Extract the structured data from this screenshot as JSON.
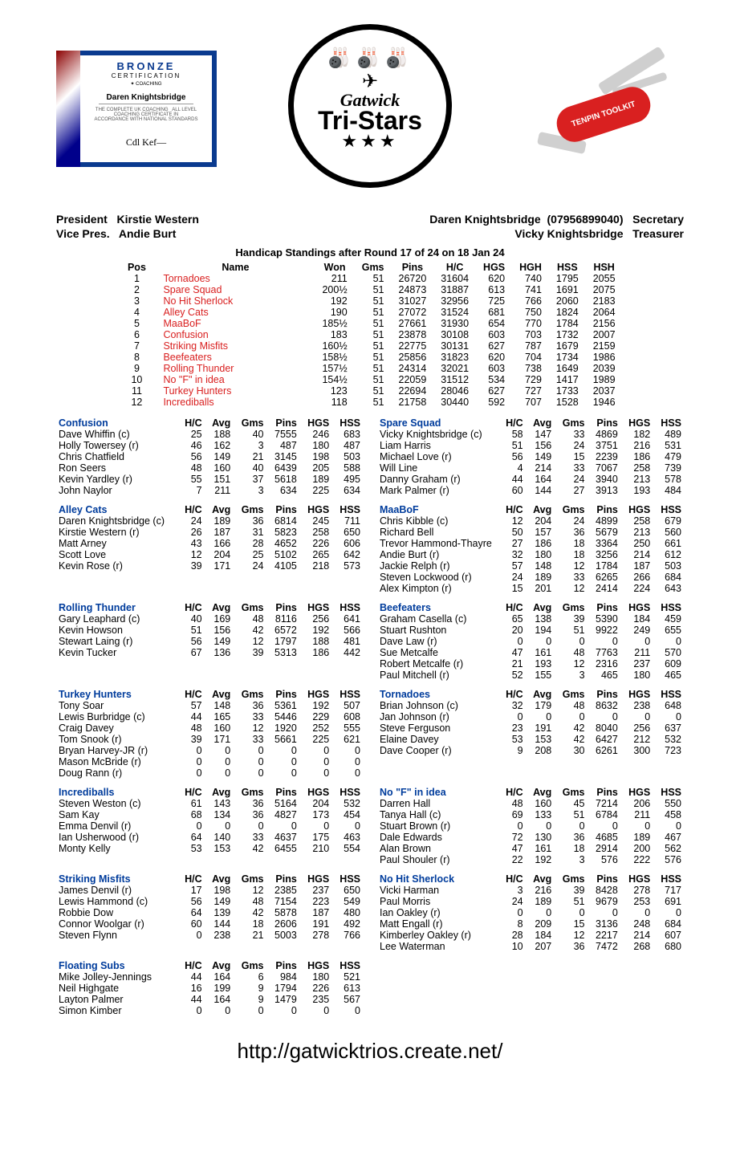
{
  "header": {
    "certificate": {
      "title": "BRONZE",
      "subtitle": "CERTIFICATION",
      "coaching": "COACHING",
      "name": "Daren Knightsbridge"
    },
    "logo": {
      "gatwick": "Gatwick",
      "tristars": "Tri-Stars"
    },
    "knife_label": "TENPIN TOOLKIT"
  },
  "officers": {
    "president_label": "President",
    "president": "Kirstie Western",
    "vp_label": "Vice Pres.",
    "vp": "Andie Burt",
    "secretary_name": "Daren Knightsbridge",
    "secretary_phone": "(07956899040)",
    "secretary_label": "Secretary",
    "treasurer_name": "Vicky Knightsbridge",
    "treasurer_label": "Treasurer"
  },
  "standings_title": "Handicap Standings after Round 17 of 24 on 18 Jan 24",
  "standings_headers": [
    "Pos",
    "Name",
    "Won",
    "Gms",
    "Pins",
    "H/C",
    "HGS",
    "HGH",
    "HSS",
    "HSH"
  ],
  "standings": [
    [
      "1",
      "Tornadoes",
      "211",
      "51",
      "26720",
      "31604",
      "620",
      "740",
      "1795",
      "2055"
    ],
    [
      "2",
      "Spare Squad",
      "200½",
      "51",
      "24873",
      "31887",
      "613",
      "741",
      "1691",
      "2075"
    ],
    [
      "3",
      "No Hit Sherlock",
      "192",
      "51",
      "31027",
      "32956",
      "725",
      "766",
      "2060",
      "2183"
    ],
    [
      "4",
      "Alley Cats",
      "190",
      "51",
      "27072",
      "31524",
      "681",
      "750",
      "1824",
      "2064"
    ],
    [
      "5",
      "MaaBoF",
      "185½",
      "51",
      "27661",
      "31930",
      "654",
      "770",
      "1784",
      "2156"
    ],
    [
      "6",
      "Confusion",
      "183",
      "51",
      "23878",
      "30108",
      "603",
      "703",
      "1732",
      "2007"
    ],
    [
      "7",
      "Striking Misfits",
      "160½",
      "51",
      "22775",
      "30131",
      "627",
      "787",
      "1679",
      "2159"
    ],
    [
      "8",
      "Beefeaters",
      "158½",
      "51",
      "25856",
      "31823",
      "620",
      "704",
      "1734",
      "1986"
    ],
    [
      "9",
      "Rolling Thunder",
      "157½",
      "51",
      "24314",
      "32021",
      "603",
      "738",
      "1649",
      "2039"
    ],
    [
      "10",
      "No \"F\" in idea",
      "154½",
      "51",
      "22059",
      "31512",
      "534",
      "729",
      "1417",
      "1989"
    ],
    [
      "11",
      "Turkey Hunters",
      "123",
      "51",
      "22694",
      "28046",
      "627",
      "727",
      "1733",
      "2037"
    ],
    [
      "12",
      "Incrediballs",
      "118",
      "51",
      "21758",
      "30440",
      "592",
      "707",
      "1528",
      "1946"
    ]
  ],
  "team_headers": [
    "H/C",
    "Avg",
    "Gms",
    "Pins",
    "HGS",
    "HSS"
  ],
  "teams_left": [
    {
      "name": "Confusion",
      "rows": [
        [
          "Dave Whiffin (c)",
          "25",
          "188",
          "40",
          "7555",
          "246",
          "683"
        ],
        [
          "Holly Towersey (r)",
          "46",
          "162",
          "3",
          "487",
          "180",
          "487"
        ],
        [
          "Chris Chatfield",
          "56",
          "149",
          "21",
          "3145",
          "198",
          "503"
        ],
        [
          "Ron Seers",
          "48",
          "160",
          "40",
          "6439",
          "205",
          "588"
        ],
        [
          "Kevin Yardley (r)",
          "55",
          "151",
          "37",
          "5618",
          "189",
          "495"
        ],
        [
          "John Naylor",
          "7",
          "211",
          "3",
          "634",
          "225",
          "634"
        ]
      ]
    },
    {
      "name": "Alley Cats",
      "rows": [
        [
          "Daren Knightsbridge (c)",
          "24",
          "189",
          "36",
          "6814",
          "245",
          "711"
        ],
        [
          "Kirstie Western (r)",
          "26",
          "187",
          "31",
          "5823",
          "258",
          "650"
        ],
        [
          "Matt Arney",
          "43",
          "166",
          "28",
          "4652",
          "226",
          "606"
        ],
        [
          "Scott Love",
          "12",
          "204",
          "25",
          "5102",
          "265",
          "642"
        ],
        [
          "Kevin Rose (r)",
          "39",
          "171",
          "24",
          "4105",
          "218",
          "573"
        ]
      ]
    },
    {
      "name": "Rolling Thunder",
      "rows": [
        [
          "Gary Leaphard (c)",
          "40",
          "169",
          "48",
          "8116",
          "256",
          "641"
        ],
        [
          "Kevin Howson",
          "51",
          "156",
          "42",
          "6572",
          "192",
          "566"
        ],
        [
          "Stewart Laing (r)",
          "56",
          "149",
          "12",
          "1797",
          "188",
          "481"
        ],
        [
          "Kevin Tucker",
          "67",
          "136",
          "39",
          "5313",
          "186",
          "442"
        ]
      ]
    },
    {
      "name": "Turkey Hunters",
      "rows": [
        [
          "Tony Soar",
          "57",
          "148",
          "36",
          "5361",
          "192",
          "507"
        ],
        [
          "Lewis Burbridge (c)",
          "44",
          "165",
          "33",
          "5446",
          "229",
          "608"
        ],
        [
          "Craig Davey",
          "48",
          "160",
          "12",
          "1920",
          "252",
          "555"
        ],
        [
          "Tom Snook (r)",
          "39",
          "171",
          "33",
          "5661",
          "225",
          "621"
        ],
        [
          "Bryan  Harvey-JR (r)",
          "0",
          "0",
          "0",
          "0",
          "0",
          "0"
        ],
        [
          "Mason McBride (r)",
          "0",
          "0",
          "0",
          "0",
          "0",
          "0"
        ],
        [
          "Doug Rann (r)",
          "0",
          "0",
          "0",
          "0",
          "0",
          "0"
        ]
      ]
    },
    {
      "name": "Incrediballs",
      "rows": [
        [
          "Steven Weston (c)",
          "61",
          "143",
          "36",
          "5164",
          "204",
          "532"
        ],
        [
          "Sam Kay",
          "68",
          "134",
          "36",
          "4827",
          "173",
          "454"
        ],
        [
          "Emma Denvil (r)",
          "0",
          "0",
          "0",
          "0",
          "0",
          "0"
        ],
        [
          "Ian Usherwood (r)",
          "64",
          "140",
          "33",
          "4637",
          "175",
          "463"
        ],
        [
          "Monty  Kelly",
          "53",
          "153",
          "42",
          "6455",
          "210",
          "554"
        ]
      ]
    },
    {
      "name": "Striking Misfits",
      "rows": [
        [
          "James Denvil (r)",
          "17",
          "198",
          "12",
          "2385",
          "237",
          "650"
        ],
        [
          "Lewis Hammond (c)",
          "56",
          "149",
          "48",
          "7154",
          "223",
          "549"
        ],
        [
          "Robbie Dow",
          "64",
          "139",
          "42",
          "5878",
          "187",
          "480"
        ],
        [
          "Connor Woolgar (r)",
          "60",
          "144",
          "18",
          "2606",
          "191",
          "492"
        ],
        [
          "Steven Flynn",
          "0",
          "238",
          "21",
          "5003",
          "278",
          "766"
        ]
      ]
    },
    {
      "name": "Floating Subs",
      "rows": [
        [
          "Mike Jolley-Jennings",
          "44",
          "164",
          "6",
          "984",
          "180",
          "521"
        ],
        [
          "Neil Highgate",
          "16",
          "199",
          "9",
          "1794",
          "226",
          "613"
        ],
        [
          "Layton Palmer",
          "44",
          "164",
          "9",
          "1479",
          "235",
          "567"
        ],
        [
          "Simon Kimber",
          "0",
          "0",
          "0",
          "0",
          "0",
          "0"
        ]
      ]
    }
  ],
  "teams_right": [
    {
      "name": "Spare Squad",
      "rows": [
        [
          "Vicky Knightsbridge (c)",
          "58",
          "147",
          "33",
          "4869",
          "182",
          "489"
        ],
        [
          "Liam Harris",
          "51",
          "156",
          "24",
          "3751",
          "216",
          "531"
        ],
        [
          "Michael Love (r)",
          "56",
          "149",
          "15",
          "2239",
          "186",
          "479"
        ],
        [
          "Will Line",
          "4",
          "214",
          "33",
          "7067",
          "258",
          "739"
        ],
        [
          "Danny Graham (r)",
          "44",
          "164",
          "24",
          "3940",
          "213",
          "578"
        ],
        [
          "Mark  Palmer (r)",
          "60",
          "144",
          "27",
          "3913",
          "193",
          "484"
        ]
      ]
    },
    {
      "name": "MaaBoF",
      "rows": [
        [
          "Chris Kibble (c)",
          "12",
          "204",
          "24",
          "4899",
          "258",
          "679"
        ],
        [
          "Richard Bell",
          "50",
          "157",
          "36",
          "5679",
          "213",
          "560"
        ],
        [
          "Trevor Hammond-Thayre",
          "27",
          "186",
          "18",
          "3364",
          "250",
          "661"
        ],
        [
          "Andie Burt (r)",
          "32",
          "180",
          "18",
          "3256",
          "214",
          "612"
        ],
        [
          "Jackie Relph (r)",
          "57",
          "148",
          "12",
          "1784",
          "187",
          "503"
        ],
        [
          "Steven Lockwood (r)",
          "24",
          "189",
          "33",
          "6265",
          "266",
          "684"
        ],
        [
          "Alex Kimpton (r)",
          "15",
          "201",
          "12",
          "2414",
          "224",
          "643"
        ]
      ]
    },
    {
      "name": "Beefeaters",
      "rows": [
        [
          "Graham Casella (c)",
          "65",
          "138",
          "39",
          "5390",
          "184",
          "459"
        ],
        [
          "Stuart Rushton",
          "20",
          "194",
          "51",
          "9922",
          "249",
          "655"
        ],
        [
          "Dave Law (r)",
          "0",
          "0",
          "0",
          "0",
          "0",
          "0"
        ],
        [
          "Sue Metcalfe",
          "47",
          "161",
          "48",
          "7763",
          "211",
          "570"
        ],
        [
          "Robert Metcalfe (r)",
          "21",
          "193",
          "12",
          "2316",
          "237",
          "609"
        ],
        [
          "Paul Mitchell (r)",
          "52",
          "155",
          "3",
          "465",
          "180",
          "465"
        ]
      ]
    },
    {
      "name": "Tornadoes",
      "rows": [
        [
          "Brian Johnson (c)",
          "32",
          "179",
          "48",
          "8632",
          "238",
          "648"
        ],
        [
          "Jan Johnson (r)",
          "0",
          "0",
          "0",
          "0",
          "0",
          "0"
        ],
        [
          "Steve  Ferguson",
          "23",
          "191",
          "42",
          "8040",
          "256",
          "637"
        ],
        [
          "Elaine Davey",
          "53",
          "153",
          "42",
          "6427",
          "212",
          "532"
        ],
        [
          "Dave Cooper (r)",
          "9",
          "208",
          "30",
          "6261",
          "300",
          "723"
        ]
      ]
    },
    {
      "name": "No \"F\" in idea",
      "rows": [
        [
          "Darren Hall",
          "48",
          "160",
          "45",
          "7214",
          "206",
          "550"
        ],
        [
          "Tanya Hall (c)",
          "69",
          "133",
          "51",
          "6784",
          "211",
          "458"
        ],
        [
          "Stuart Brown (r)",
          "0",
          "0",
          "0",
          "0",
          "0",
          "0"
        ],
        [
          "Dale Edwards",
          "72",
          "130",
          "36",
          "4685",
          "189",
          "467"
        ],
        [
          "Alan Brown",
          "47",
          "161",
          "18",
          "2914",
          "200",
          "562"
        ],
        [
          "Paul Shouler (r)",
          "22",
          "192",
          "3",
          "576",
          "222",
          "576"
        ]
      ]
    },
    {
      "name": "No Hit Sherlock",
      "rows": [
        [
          "Vicki Harman",
          "3",
          "216",
          "39",
          "8428",
          "278",
          "717"
        ],
        [
          "Paul Morris",
          "24",
          "189",
          "51",
          "9679",
          "253",
          "691"
        ],
        [
          "Ian Oakley (r)",
          "0",
          "0",
          "0",
          "0",
          "0",
          "0"
        ],
        [
          "Matt Engall (r)",
          "8",
          "209",
          "15",
          "3136",
          "248",
          "684"
        ],
        [
          "Kimberley Oakley (r)",
          "28",
          "184",
          "12",
          "2217",
          "214",
          "607"
        ],
        [
          "Lee Waterman",
          "10",
          "207",
          "36",
          "7472",
          "268",
          "680"
        ]
      ]
    }
  ],
  "footer_url": "http://gatwicktrios.create.net/"
}
